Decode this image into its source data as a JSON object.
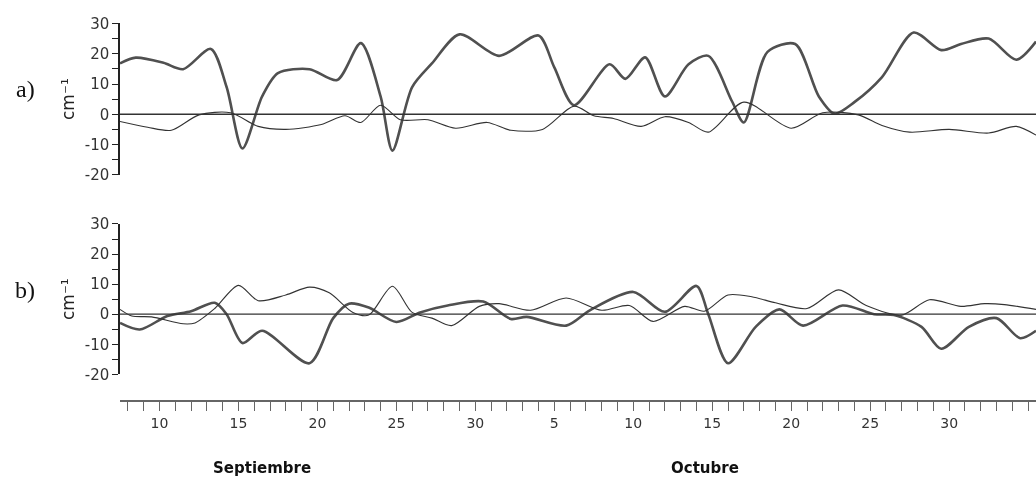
{
  "chart_data": [
    {
      "type": "line",
      "title": "a)",
      "ylabel": "cm⁻¹",
      "tick_labels": "y",
      "marker": "none",
      "line_style": "solid",
      "xlim": [
        "--09-07T12:00",
        "--11-04T12:00"
      ],
      "ylim": [
        -20,
        30
      ],
      "yticks": [
        -20,
        {
          "value": -15,
          "label": null
        },
        -10,
        {
          "value": -5,
          "label": null
        },
        0,
        {
          "value": 5,
          "label": null
        },
        10,
        {
          "value": 15,
          "label": null
        },
        20,
        {
          "value": 25,
          "label": null
        },
        30
      ],
      "ref_lines": [
        {
          "axis": "y",
          "value": 0,
          "label": null,
          "color": "#333333",
          "line_style": "solid"
        }
      ],
      "series": [
        {
          "color": "#505050",
          "x": [
            "--09-07T12:00",
            "--09-08T12:00",
            "--09-10T06:00",
            "--09-11T12:00",
            "--09-13T06:00",
            "--09-14T06:00",
            "--09-15T06:00",
            "--09-16T12:00",
            "--09-17T12:00",
            "--09-19T12:00",
            "--09-21T06:00",
            "--09-22T18:00",
            "--09-24T00:00",
            "--09-24T18:00",
            "--09-26T00:00",
            "--09-27T06:00",
            "--09-29T00:00",
            "--10-01T12:00",
            "--10-04T00:00",
            "--10-05T00:00",
            "--10-06T06:00",
            "--10-08T12:00",
            "--10-09T12:00",
            "--10-10T18:00",
            "--10-12T00:00",
            "--10-13T12:00",
            "--10-14T18:00",
            "--10-16T06:00",
            "--10-17T00:00",
            "--10-18T12:00",
            "--10-20T06:00",
            "--10-21T18:00",
            "--10-22T18:00",
            "--10-24T00:00",
            "--10-25T18:00",
            "--10-27T18:00",
            "--10-29T12:00",
            "--10-30T18:00",
            "--11-01T12:00",
            "--11-03T06:00",
            "--11-04T12:00"
          ],
          "values": [
            16.8,
            18.7,
            17,
            14.9,
            21.6,
            9,
            -11.3,
            5.9,
            13.6,
            14.9,
            11.3,
            23.5,
            5.9,
            -12,
            9,
            16.8,
            26.4,
            19.3,
            26,
            15.5,
            3,
            16.5,
            11.7,
            18.8,
            5.9,
            16.5,
            19.3,
            4.3,
            -2.7,
            20.6,
            23.2,
            5.9,
            0.2,
            4,
            12.3,
            27,
            21.2,
            23.2,
            25,
            18,
            24
          ]
        },
        {
          "color": "#333333",
          "x": [
            "--09-07T12:00",
            "--09-09T06:00",
            "--09-10T18:00",
            "--09-12T12:00",
            "--09-14T12:00",
            "--09-16T06:00",
            "--09-18T00:00",
            "--09-20T06:00",
            "--09-21T18:00",
            "--09-22T18:00",
            "--09-24T00:00",
            "--09-25T06:00",
            "--09-27T00:00",
            "--09-28T18:00",
            "--09-30T18:00",
            "--10-02T06:00",
            "--10-04T06:00",
            "--10-06T06:00",
            "--10-07T12:00",
            "--10-08T18:00",
            "--10-10T12:00",
            "--10-12T00:00",
            "--10-13T12:00",
            "--10-14T18:00",
            "--10-17T00:00",
            "--10-20T00:00",
            "--10-22T00:00",
            "--10-24T06:00",
            "--10-25T18:00",
            "--10-27T12:00",
            "--10-30T00:00",
            "--11-01T12:00",
            "--11-03T06:00",
            "--11-04T12:00"
          ],
          "values": [
            -2.4,
            -4.3,
            -5.3,
            -0.2,
            0.5,
            -4,
            -5,
            -3.4,
            -0.5,
            -2.7,
            3,
            -1.8,
            -1.8,
            -4.6,
            -2.7,
            -5.3,
            -5,
            2.7,
            -0.5,
            -1.4,
            -4,
            -0.8,
            -2.7,
            -5.9,
            4,
            -4.6,
            0.5,
            -0.2,
            -3.7,
            -5.9,
            -5,
            -6.2,
            -4,
            -6.9
          ]
        }
      ]
    },
    {
      "type": "line",
      "title": "b)",
      "ylabel": "cm⁻¹",
      "marker": "none",
      "line_style": "solid",
      "xlim": [
        "--09-07T12:00",
        "--11-04T12:00"
      ],
      "xticks": [
        {
          "value": "--09-10",
          "label": "10"
        },
        {
          "value": "--09-15",
          "label": "15"
        },
        {
          "value": "--09-20",
          "label": "20"
        },
        {
          "value": "--09-25",
          "label": "25"
        },
        {
          "value": "--09-30",
          "label": "30"
        },
        {
          "value": "--10-05",
          "label": "5"
        },
        {
          "value": "--10-10",
          "label": "10"
        },
        {
          "value": "--10-15",
          "label": "15"
        },
        {
          "value": "--10-20",
          "label": "20"
        },
        {
          "value": "--10-25",
          "label": "25"
        },
        {
          "value": "--10-30",
          "label": "30"
        }
      ],
      "ylim": [
        -20,
        30
      ],
      "yticks": [
        -20,
        {
          "value": -15,
          "label": null
        },
        -10,
        {
          "value": -5,
          "label": null
        },
        0,
        {
          "value": 5,
          "label": null
        },
        10,
        {
          "value": 15,
          "label": null
        },
        20,
        {
          "value": 25,
          "label": null
        },
        30
      ],
      "ref_lines": [
        {
          "axis": "y",
          "value": 0,
          "label": null,
          "color": "#333333",
          "line_style": "solid"
        }
      ],
      "annotations": [
        "Septiembre",
        "Octubre"
      ],
      "series": [
        {
          "color": "#505050",
          "x": [
            "--09-07T12:00",
            "--09-08T18:00",
            "--09-10T12:00",
            "--09-12T00:00",
            "--09-13T12:00",
            "--09-14T06:00",
            "--09-15T06:00",
            "--09-16T12:00",
            "--09-19T12:00",
            "--09-21T00:00",
            "--09-22T00:00",
            "--09-23T06:00",
            "--09-25T00:00",
            "--09-26T12:00",
            "--09-28T06:00",
            "--09-30T12:00",
            "--10-02T06:00",
            "--10-03T06:00",
            "--10-05T18:00",
            "--10-07T06:00",
            "--10-10T00:00",
            "--10-12T00:00",
            "--10-14T00:00",
            "--10-14T18:00",
            "--10-16T00:00",
            "--10-17T18:00",
            "--10-19T06:00",
            "--10-20T18:00",
            "--10-23T06:00",
            "--10-25T06:00",
            "--10-26T12:00",
            "--10-28T06:00",
            "--10-29T12:00",
            "--10-31T06:00",
            "--11-02T00:00",
            "--11-03T12:00",
            "--11-04T12:00"
          ],
          "values": [
            -2.9,
            -5.1,
            -0.6,
            1,
            3.8,
            0,
            -9.6,
            -5.5,
            -16.3,
            -1.3,
            3.5,
            2.2,
            -2.6,
            0.6,
            2.9,
            4.2,
            -1.6,
            -0.9,
            -3.8,
            1.3,
            7.4,
            0.8,
            9.4,
            0,
            -16.3,
            -4.2,
            1.6,
            -3.8,
            2.9,
            0,
            -0.3,
            -4.2,
            -11.5,
            -4.2,
            -1.3,
            -8,
            -5.5
          ]
        },
        {
          "color": "#333333",
          "x": [
            "--09-07T12:00",
            "--09-08T06:00",
            "--09-09T12:00",
            "--09-11T12:00",
            "--09-12T06:00",
            "--09-13T12:00",
            "--09-15T00:00",
            "--09-16T06:00",
            "--09-18T00:00",
            "--09-19T12:00",
            "--09-20T18:00",
            "--09-22T06:00",
            "--09-23T06:00",
            "--09-24T18:00",
            "--09-26T00:00",
            "--09-27T06:00",
            "--09-28T12:00",
            "--09-30T06:00",
            "--10-01T12:00",
            "--10-03T12:00",
            "--10-05T18:00",
            "--10-08T00:00",
            "--10-09T18:00",
            "--10-11T06:00",
            "--10-13T06:00",
            "--10-14T12:00",
            "--10-16T00:00",
            "--10-17T12:00",
            "--10-19T00:00",
            "--10-21T00:00",
            "--10-23T00:00",
            "--10-24T18:00",
            "--10-27T00:00",
            "--10-28T18:00",
            "--10-30T18:00",
            "--11-01T06:00",
            "--11-02T12:00",
            "--11-04T12:00"
          ],
          "values": [
            1.6,
            -0.6,
            -0.9,
            -3.2,
            -2.9,
            1.9,
            9.6,
            4.5,
            6.4,
            9,
            7.1,
            0.6,
            -0.3,
            9.3,
            0.6,
            -1.3,
            -3.8,
            2.6,
            3.5,
            1.3,
            5.4,
            1.3,
            2.9,
            -2.4,
            2.6,
            1,
            6.4,
            5.8,
            3.8,
            1.9,
            8.1,
            2.9,
            -0.3,
            4.8,
            2.6,
            3.5,
            3.2,
            1.6
          ]
        }
      ]
    }
  ]
}
